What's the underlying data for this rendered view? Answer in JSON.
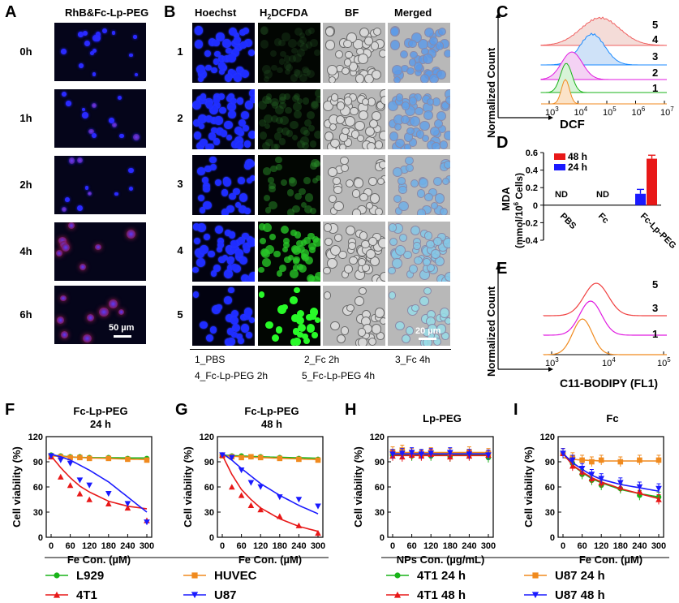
{
  "panelA": {
    "letter": "A",
    "header": "RhB&Fc-Lp-PEG",
    "rows": [
      "0h",
      "1h",
      "2h",
      "4h",
      "6h"
    ],
    "scalebar": "50 µm"
  },
  "panelB": {
    "letter": "B",
    "headers": [
      "Hoechst",
      "H2DCFDA",
      "BF",
      "Merged"
    ],
    "h2_main": "H",
    "h2_sub": "2",
    "h2_rest": "DCFDA",
    "rows": [
      "1",
      "2",
      "3",
      "4",
      "5"
    ],
    "scalebar": "20 µm",
    "legend": [
      "1_PBS",
      "2_Fc 2h",
      "3_Fc 4h",
      "4_Fc-Lp-PEG 2h",
      "5_Fc-Lp-PEG 4h"
    ]
  },
  "panelC": {
    "letter": "C",
    "ylabel": "Normalized Count",
    "xlabel": "DCF",
    "ticks": [
      "10",
      "10",
      "10",
      "10",
      "10"
    ],
    "tick_exps": [
      "3",
      "4",
      "5",
      "6",
      "7"
    ],
    "curve_labels": [
      "5",
      "4",
      "3",
      "2",
      "1"
    ]
  },
  "panelD": {
    "letter": "D",
    "ylabel_line1": "MDA",
    "ylabel_line2_pre": "(mmol/10",
    "ylabel_line2_exp": "6",
    "ylabel_line2_post": " Cells)",
    "nd": "ND",
    "legend": [
      {
        "label": "48 h",
        "color": "#e81818"
      },
      {
        "label": "24 h",
        "color": "#1a1aff"
      }
    ]
  },
  "panelE": {
    "letter": "E",
    "ylabel": "Normalized Count",
    "xlabel": "C11-BODIPY (FL1)",
    "tick_exps": [
      "3",
      "4",
      "5"
    ],
    "curve_labels": [
      "5",
      "3",
      "1"
    ]
  },
  "cellPanels": [
    {
      "letter": "F",
      "title": "Fc-Lp-PEG",
      "subtitle": "24 h",
      "xlabel_pre": "Fe Con. (",
      "xlabel_mu": "µ",
      "xlabel_post": "M)"
    },
    {
      "letter": "G",
      "title": "Fc-Lp-PEG",
      "subtitle": "48 h",
      "xlabel_pre": "Fe Con. (",
      "xlabel_mu": "µ",
      "xlabel_post": "M)"
    },
    {
      "letter": "H",
      "title": "Lp-PEG",
      "subtitle": "",
      "xlabel_pre": "NPs Con. (",
      "xlabel_mu": "µ",
      "xlabel_post": "g/mL)"
    },
    {
      "letter": "I",
      "title": "Fc",
      "subtitle": "",
      "xlabel_pre": "Fe Con. (",
      "xlabel_mu": "µ",
      "xlabel_post": "M)"
    }
  ],
  "cell_ylabel": "Cell viability (%)",
  "cell_yticks": [
    "0",
    "30",
    "60",
    "90",
    "120"
  ],
  "cell_xticks": [
    "0",
    "60",
    "120",
    "180",
    "240",
    "300"
  ],
  "legendLeft": [
    {
      "label": "L929",
      "color": "#19b319",
      "marker": "circle"
    },
    {
      "label": "HUVEC",
      "color": "#f08a1e",
      "marker": "square"
    },
    {
      "label": "4T1",
      "color": "#e81818",
      "marker": "triangle-up"
    },
    {
      "label": "U87",
      "color": "#1a1aff",
      "marker": "triangle-down"
    }
  ],
  "legendRight": [
    {
      "label": "4T1 24 h",
      "color": "#19b319",
      "marker": "circle"
    },
    {
      "label": "U87 24 h",
      "color": "#f08a1e",
      "marker": "square"
    },
    {
      "label": "4T1 48 h",
      "color": "#e81818",
      "marker": "triangle-up"
    },
    {
      "label": "U87 48 h",
      "color": "#1a1aff",
      "marker": "triangle-down"
    }
  ],
  "chart_data": [
    {
      "type": "bar",
      "panel": "D",
      "categories": [
        "PBS",
        "Fc",
        "Fc-Lp-PEG"
      ],
      "ylim": [
        -0.4,
        0.6
      ],
      "yticks": [
        "0.6",
        "0.4",
        "0.2",
        "0",
        "-0.2",
        "-0.4"
      ],
      "series": [
        {
          "name": "24 h",
          "color": "#1a1aff",
          "values": [
            null,
            null,
            0.13
          ],
          "errors": [
            null,
            null,
            0.05
          ]
        },
        {
          "name": "48 h",
          "color": "#e81818",
          "values": [
            null,
            null,
            0.53
          ],
          "errors": [
            null,
            null,
            0.04
          ]
        }
      ]
    },
    {
      "type": "scatter",
      "panel": "F",
      "x": [
        0,
        30,
        60,
        90,
        120,
        180,
        240,
        300
      ],
      "xlim": [
        0,
        300
      ],
      "ylim": [
        0,
        120
      ],
      "series": [
        {
          "name": "L929",
          "color": "#19b319",
          "marker": "circle",
          "values": [
            98,
            97,
            96,
            96,
            95,
            95,
            94,
            94
          ],
          "fit": [
            98,
            96.9,
            95.8,
            95.2,
            95,
            94.8,
            94.6,
            94.5
          ]
        },
        {
          "name": "HUVEC",
          "color": "#f08a1e",
          "marker": "square",
          "values": [
            97,
            96,
            95,
            95,
            94,
            94,
            93,
            92
          ],
          "fit": [
            97,
            96.3,
            95.7,
            95.1,
            94.6,
            93.9,
            93.2,
            92.6
          ]
        },
        {
          "name": "4T1",
          "color": "#e81818",
          "marker": "triangle-up",
          "values": [
            96,
            72,
            62,
            52,
            45,
            40,
            35,
            20
          ],
          "fit": [
            97,
            83,
            71,
            61,
            54,
            43,
            37,
            34
          ]
        },
        {
          "name": "U87",
          "color": "#1a1aff",
          "marker": "triangle-down",
          "values": [
            97,
            92,
            88,
            68,
            62,
            52,
            40,
            18
          ],
          "fit": [
            99,
            96,
            92,
            86,
            80,
            66,
            48,
            30
          ]
        }
      ]
    },
    {
      "type": "scatter",
      "panel": "G",
      "x": [
        0,
        30,
        60,
        90,
        120,
        180,
        240,
        300
      ],
      "xlim": [
        0,
        300
      ],
      "ylim": [
        0,
        120
      ],
      "series": [
        {
          "name": "L929",
          "color": "#19b319",
          "marker": "circle",
          "values": [
            98,
            97,
            97,
            96,
            96,
            95,
            94,
            93
          ],
          "fit": [
            98,
            97.4,
            96.9,
            96.4,
            96,
            95.3,
            94.8,
            94.3
          ]
        },
        {
          "name": "HUVEC",
          "color": "#f08a1e",
          "marker": "square",
          "values": [
            97,
            96,
            95,
            96,
            95,
            94,
            93,
            92
          ],
          "fit": [
            97,
            96.5,
            96,
            95.5,
            95,
            94.2,
            93.4,
            92.6
          ]
        },
        {
          "name": "4T1",
          "color": "#e81818",
          "marker": "triangle-up",
          "values": [
            98,
            60,
            50,
            38,
            33,
            25,
            14,
            5
          ],
          "fit": [
            98,
            75,
            57,
            45,
            35,
            22,
            13,
            7
          ]
        },
        {
          "name": "U87",
          "color": "#1a1aff",
          "marker": "triangle-down",
          "values": [
            98,
            95,
            80,
            65,
            60,
            48,
            45,
            37
          ],
          "fit": [
            100,
            92,
            82,
            73,
            64,
            50,
            38,
            28
          ]
        }
      ]
    },
    {
      "type": "scatter",
      "panel": "H",
      "x": [
        0,
        30,
        60,
        90,
        120,
        180,
        240,
        300
      ],
      "xlim": [
        0,
        300
      ],
      "ylim": [
        0,
        120
      ],
      "series": [
        {
          "name": "4T1 24 h",
          "color": "#19b319",
          "marker": "circle",
          "values": [
            98,
            99,
            97,
            98,
            97,
            96,
            98,
            95
          ],
          "fit": [
            98,
            98,
            98,
            98,
            98,
            98,
            98,
            98
          ]
        },
        {
          "name": "U87 24 h",
          "color": "#f08a1e",
          "marker": "square",
          "values": [
            102,
            104,
            100,
            98,
            101,
            100,
            102,
            100
          ],
          "fit": [
            101,
            101,
            101,
            101,
            101,
            101,
            101,
            101
          ]
        },
        {
          "name": "4T1 48 h",
          "color": "#e81818",
          "marker": "triangle-up",
          "values": [
            97,
            96,
            98,
            97,
            99,
            96,
            97,
            98
          ],
          "fit": [
            97.5,
            97.5,
            97.5,
            97.5,
            97.5,
            97.5,
            97.5,
            97.5
          ]
        },
        {
          "name": "U87 48 h",
          "color": "#1a1aff",
          "marker": "triangle-down",
          "values": [
            99,
            100,
            101,
            99,
            100,
            101,
            99,
            98
          ],
          "fit": [
            99.5,
            99.5,
            99.5,
            99.5,
            99.5,
            99.5,
            99.5,
            99.5
          ]
        }
      ]
    },
    {
      "type": "scatter",
      "panel": "I",
      "x": [
        0,
        30,
        60,
        90,
        120,
        180,
        240,
        300
      ],
      "xlim": [
        0,
        300
      ],
      "ylim": [
        0,
        120
      ],
      "series": [
        {
          "name": "4T1 24 h",
          "color": "#19b319",
          "marker": "circle",
          "values": [
            100,
            88,
            75,
            68,
            62,
            58,
            50,
            48
          ],
          "fit": [
            100,
            86,
            77,
            70,
            65,
            57,
            52,
            48
          ]
        },
        {
          "name": "U87 24 h",
          "color": "#f08a1e",
          "marker": "square",
          "values": [
            100,
            95,
            92,
            90,
            92,
            90,
            92,
            92
          ],
          "fit": [
            95,
            93,
            92,
            91.5,
            91,
            91,
            91,
            91
          ]
        },
        {
          "name": "4T1 48 h",
          "color": "#e81818",
          "marker": "triangle-up",
          "values": [
            100,
            85,
            78,
            70,
            65,
            60,
            55,
            45
          ],
          "fit": [
            100,
            86,
            78,
            71,
            66,
            58,
            52,
            46
          ]
        },
        {
          "name": "U87 48 h",
          "color": "#1a1aff",
          "marker": "triangle-down",
          "values": [
            100,
            92,
            82,
            75,
            70,
            65,
            60,
            58
          ],
          "fit": [
            100,
            89,
            81,
            74,
            69,
            63,
            59,
            55
          ]
        }
      ]
    }
  ]
}
